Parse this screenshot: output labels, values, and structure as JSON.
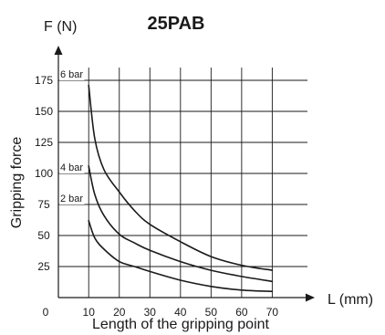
{
  "chart_data": {
    "type": "line",
    "title": "25PAB",
    "y_axis_unit": "F (N)",
    "ylabel": "Gripping force",
    "x_axis_unit": "L (mm)",
    "xlabel": "Length of the gripping point",
    "origin_label": "0",
    "xlim": [
      0,
      70
    ],
    "ylim": [
      0,
      175
    ],
    "x_ticks": [
      10,
      20,
      30,
      40,
      50,
      60,
      70
    ],
    "y_ticks": [
      25,
      50,
      75,
      100,
      125,
      150,
      175
    ],
    "grid": true,
    "line_color": "#1a1a1a",
    "series": [
      {
        "name": "6 bar",
        "x": [
          10,
          12,
          15,
          20,
          25,
          30,
          40,
          50,
          60,
          70
        ],
        "y": [
          171,
          128,
          103,
          85,
          70,
          59,
          45,
          33,
          26,
          22
        ]
      },
      {
        "name": "4 bar",
        "x": [
          10,
          12,
          15,
          20,
          25,
          30,
          40,
          50,
          60,
          70
        ],
        "y": [
          106,
          83,
          66,
          51,
          44,
          38,
          29,
          22,
          17,
          13
        ]
      },
      {
        "name": "2 bar",
        "x": [
          10,
          12,
          15,
          20,
          25,
          30,
          40,
          50,
          60,
          70
        ],
        "y": [
          62,
          48,
          39,
          29,
          25,
          21,
          14,
          9,
          6,
          5
        ]
      }
    ]
  }
}
